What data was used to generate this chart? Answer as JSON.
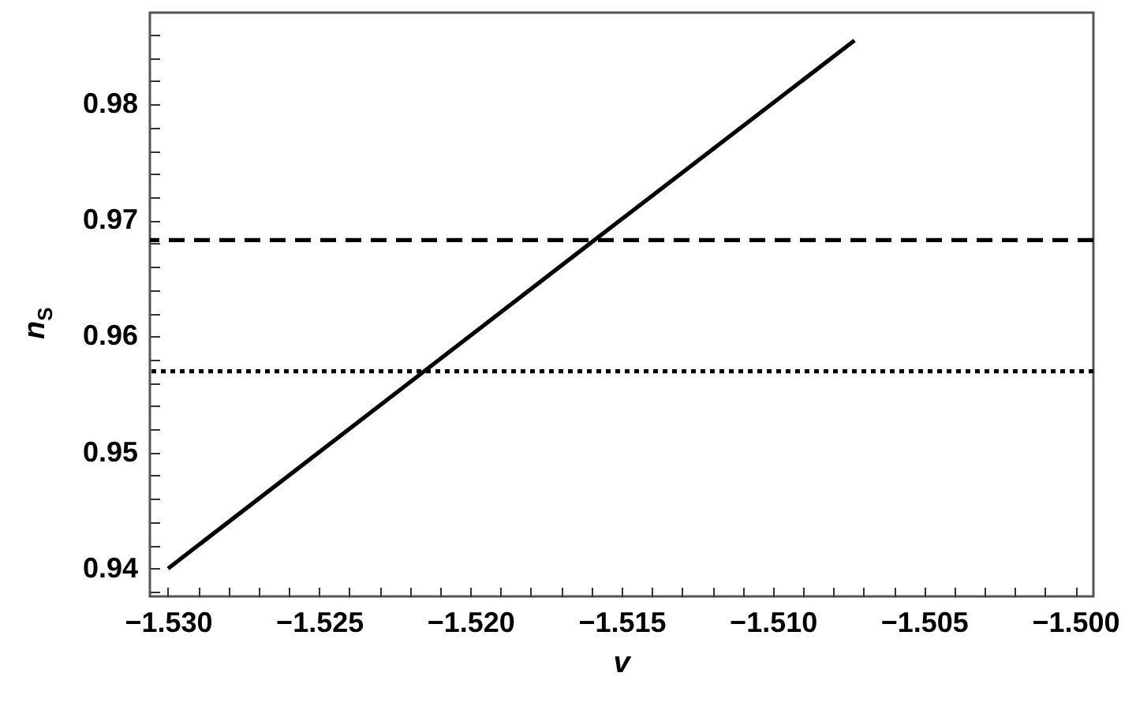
{
  "chart_data": {
    "type": "line",
    "xlabel": "v",
    "ylabel": "n$_{S}$",
    "x": [
      -1.53,
      -1.5158,
      -1.5073
    ],
    "series": [
      {
        "color": "#000000",
        "values": [
          0.94,
          0.9685,
          0.9855
        ]
      }
    ],
    "line_style": "solid",
    "marker": "none",
    "grid": false,
    "legend": false,
    "ref_lines": [
      {
        "axis": "y",
        "value": 0.9683,
        "color": "#000000",
        "line_style": "dashed"
      },
      {
        "axis": "y",
        "value": 0.957,
        "color": "#000000",
        "line_style": "dotted"
      }
    ],
    "xlim": [
      -1.5306,
      -1.4994
    ],
    "ylim": [
      0.9376,
      0.9879
    ],
    "xticks": [
      {
        "value": -1.53,
        "label": "−1.530"
      },
      -1.525,
      {
        "value": -1.52,
        "label": "−1.520"
      },
      -1.515,
      {
        "value": -1.51,
        "label": "−1.510"
      },
      -1.505,
      {
        "value": -1.5,
        "label": "−1.500"
      },
      {
        "value": -1.529,
        "label": null
      },
      {
        "value": -1.528,
        "label": null
      },
      {
        "value": -1.527,
        "label": null
      },
      {
        "value": -1.526,
        "label": null
      },
      {
        "value": -1.524,
        "label": null
      },
      {
        "value": -1.523,
        "label": null
      },
      {
        "value": -1.522,
        "label": null
      },
      {
        "value": -1.521,
        "label": null
      },
      {
        "value": -1.519,
        "label": null
      },
      {
        "value": -1.518,
        "label": null
      },
      {
        "value": -1.517,
        "label": null
      },
      {
        "value": -1.516,
        "label": null
      },
      {
        "value": -1.514,
        "label": null
      },
      {
        "value": -1.513,
        "label": null
      },
      {
        "value": -1.512,
        "label": null
      },
      {
        "value": -1.511,
        "label": null
      },
      {
        "value": -1.509,
        "label": null
      },
      {
        "value": -1.508,
        "label": null
      },
      {
        "value": -1.507,
        "label": null
      },
      {
        "value": -1.506,
        "label": null
      },
      {
        "value": -1.504,
        "label": null
      },
      {
        "value": -1.503,
        "label": null
      },
      {
        "value": -1.502,
        "label": null
      },
      {
        "value": -1.501,
        "label": null
      }
    ],
    "yticks": [
      0.94,
      0.95,
      0.96,
      0.97,
      0.98,
      {
        "value": 0.938,
        "label": null
      },
      {
        "value": 0.942,
        "label": null
      },
      {
        "value": 0.944,
        "label": null
      },
      {
        "value": 0.946,
        "label": null
      },
      {
        "value": 0.948,
        "label": null
      },
      {
        "value": 0.952,
        "label": null
      },
      {
        "value": 0.954,
        "label": null
      },
      {
        "value": 0.956,
        "label": null
      },
      {
        "value": 0.958,
        "label": null
      },
      {
        "value": 0.962,
        "label": null
      },
      {
        "value": 0.964,
        "label": null
      },
      {
        "value": 0.966,
        "label": null
      },
      {
        "value": 0.968,
        "label": null
      },
      {
        "value": 0.972,
        "label": null
      },
      {
        "value": 0.974,
        "label": null
      },
      {
        "value": 0.976,
        "label": null
      },
      {
        "value": 0.978,
        "label": null
      },
      {
        "value": 0.982,
        "label": null
      },
      {
        "value": 0.984,
        "label": null
      },
      {
        "value": 0.986,
        "label": null
      }
    ]
  }
}
